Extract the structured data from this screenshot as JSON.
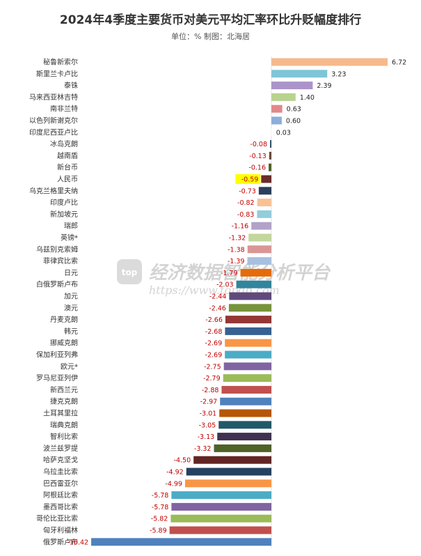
{
  "chart_data": {
    "type": "bar",
    "orientation": "horizontal",
    "title": "2024年4季度主要货币对美元平均汇率环比升贬幅度排行",
    "subtitle": "单位：% 制图：北海居",
    "categories": [
      "秘鲁新索尔",
      "斯里兰卡卢比",
      "泰铢",
      "马来西亚林吉特",
      "南非兰特",
      "以色列新谢克尔",
      "印度尼西亚卢比",
      "冰岛克朗",
      "越南盾",
      "新台币",
      "人民币",
      "乌克兰格里夫纳",
      "印度卢比",
      "新加坡元",
      "瑞郎",
      "英镑*",
      "乌兹别克索姆",
      "菲律宾比索",
      "日元",
      "白俄罗斯卢布",
      "加元",
      "澳元",
      "丹麦克朗",
      "韩元",
      "挪威克朗",
      "保加利亚列弗",
      "欧元*",
      "罗马尼亚列伊",
      "新西兰元",
      "捷克克朗",
      "土耳其里拉",
      "瑞典克朗",
      "智利比索",
      "波兰兹罗提",
      "哈萨克坚戈",
      "乌拉圭比索",
      "巴西雷亚尔",
      "阿根廷比索",
      "墨西哥比索",
      "哥伦比亚比索",
      "匈牙利福林",
      "俄罗斯卢布"
    ],
    "values": [
      6.72,
      3.23,
      2.39,
      1.4,
      0.63,
      0.6,
      0.03,
      -0.08,
      -0.13,
      -0.16,
      -0.59,
      -0.73,
      -0.82,
      -0.83,
      -1.16,
      -1.32,
      -1.38,
      -1.39,
      -1.79,
      -2.03,
      -2.44,
      -2.46,
      -2.66,
      -2.68,
      -2.69,
      -2.69,
      -2.75,
      -2.79,
      -2.88,
      -2.97,
      -3.01,
      -3.05,
      -3.13,
      -3.32,
      -4.5,
      -4.92,
      -4.99,
      -5.78,
      -5.78,
      -5.82,
      -5.89,
      -10.42
    ],
    "value_labels": [
      "6.72",
      "3.23",
      "2.39",
      "1.40",
      "0.63",
      "0.60",
      "0.03",
      "-0.08",
      "-0.13",
      "-0.16",
      "-0.59",
      "-0.73",
      "-0.82",
      "-0.83",
      "-1.16",
      "-1.32",
      "-1.38",
      "-1.39",
      "-1.79",
      "-2.03",
      "-2.44",
      "-2.46",
      "-2.66",
      "-2.68",
      "-2.69",
      "-2.69",
      "-2.75",
      "-2.79",
      "-2.88",
      "-2.97",
      "-3.01",
      "-3.05",
      "-3.13",
      "-3.32",
      "-4.50",
      "-4.92",
      "-4.99",
      "-5.78",
      "-5.78",
      "-5.82",
      "-5.89",
      "-10.42"
    ],
    "colors": [
      "#f7b98b",
      "#7ec5d8",
      "#ab94c9",
      "#b8d38f",
      "#e0898a",
      "#8caed9",
      "#ffffff",
      "#2f4f6f",
      "#6b4a3a",
      "#4f6228",
      "#6b2c2c",
      "#2b3f5c",
      "#f9c194",
      "#92cddc",
      "#b3a2c7",
      "#c3d69b",
      "#d99694",
      "#a7c0e0",
      "#e46c0a",
      "#31859c",
      "#604a7b",
      "#77933c",
      "#953735",
      "#376092",
      "#f79646",
      "#4bacc6",
      "#8064a2",
      "#9bbb59",
      "#c0504d",
      "#4f81bd",
      "#b65708",
      "#215968",
      "#403151",
      "#4f6228",
      "#632523",
      "#254061",
      "#f79646",
      "#4bacc6",
      "#8064a2",
      "#9bbb59",
      "#c0504d",
      "#4f81bd"
    ],
    "highlight_category": "人民币",
    "highlight_color": "#ffff00",
    "xlim": [
      -10.42,
      6.72
    ],
    "grid": false,
    "legend": "none"
  },
  "watermark": {
    "text": "经济数据智能分析平台",
    "url": "https://www.topdb.com",
    "logo": "top"
  }
}
